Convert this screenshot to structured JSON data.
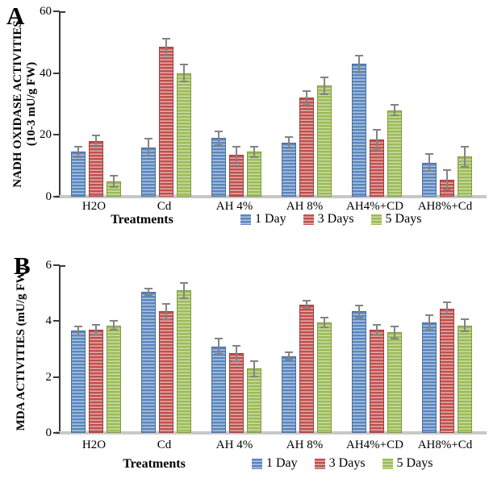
{
  "colors": {
    "blue": "#5b85bd",
    "blue_light": "#adc6e1",
    "blue_border": "#4a6f9f",
    "red": "#c0504d",
    "red_light": "#e2aeac",
    "red_border": "#9e3f3d",
    "green": "#9bbb59",
    "green_light": "#ccdca1",
    "green_border": "#7e9c42",
    "error_bar": "#848484",
    "axis": "#3a3a3a",
    "baseline": "#c8c8c8",
    "text": "#000000"
  },
  "chart_data": [
    {
      "type": "bar",
      "panel_label": "A",
      "ylabel_lines": [
        "NADH OXIDASE ACTIVITIES",
        "(10-3 mU/g FW)"
      ],
      "xlabel": "Treatments",
      "ylim": [
        0,
        60
      ],
      "yticks": [
        0,
        20,
        40,
        60
      ],
      "grid": false,
      "legend_position": "bottom-right",
      "categories": [
        "H2O",
        "Cd",
        "AH 4%",
        "AH 8%",
        "AH4%+CD",
        "AH8%+Cd"
      ],
      "series": [
        {
          "name": "1 Day",
          "color_key": "blue",
          "values": [
            14.5,
            16,
            19,
            17.5,
            43,
            11
          ],
          "errors": [
            2,
            3,
            2.5,
            2,
            3,
            3
          ]
        },
        {
          "name": "3 Days",
          "color_key": "red",
          "values": [
            18,
            48.5,
            13.5,
            32,
            18.5,
            5.5
          ],
          "errors": [
            2,
            3,
            3,
            2.5,
            3.5,
            3.5
          ]
        },
        {
          "name": "5 Days",
          "color_key": "green",
          "values": [
            5,
            40,
            14.5,
            36,
            28,
            13
          ],
          "errors": [
            2,
            3,
            2,
            3,
            2,
            3.5
          ]
        }
      ]
    },
    {
      "type": "bar",
      "panel_label": "B",
      "ylabel_lines": [
        "MDA ACTIVITIES (mU/g FW)"
      ],
      "xlabel": "Treatments",
      "ylim": [
        0,
        6
      ],
      "yticks": [
        0,
        2,
        4,
        6
      ],
      "grid": false,
      "legend_position": "bottom-right",
      "categories": [
        "H2O",
        "Cd",
        "AH 4%",
        "AH 8%",
        "AH4%+CD",
        "AH8%+Cd"
      ],
      "series": [
        {
          "name": "1 Day",
          "color_key": "blue",
          "values": [
            3.65,
            5.05,
            3.1,
            2.75,
            4.35,
            3.95
          ],
          "errors": [
            0.2,
            0.15,
            0.3,
            0.15,
            0.25,
            0.3
          ]
        },
        {
          "name": "3 Days",
          "color_key": "red",
          "values": [
            3.7,
            4.35,
            2.85,
            4.6,
            3.7,
            4.45
          ],
          "errors": [
            0.2,
            0.3,
            0.3,
            0.15,
            0.2,
            0.25
          ]
        },
        {
          "name": "5 Days",
          "color_key": "green",
          "values": [
            3.85,
            5.1,
            2.3,
            3.95,
            3.6,
            3.85
          ],
          "errors": [
            0.2,
            0.3,
            0.3,
            0.2,
            0.25,
            0.25
          ]
        }
      ]
    }
  ]
}
